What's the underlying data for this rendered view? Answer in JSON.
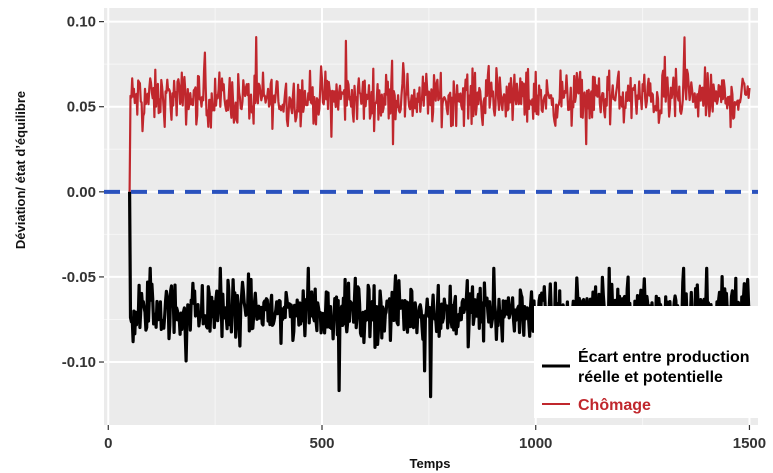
{
  "chart_data": {
    "type": "line",
    "xlabel": "Temps",
    "ylabel": "Déviation/ état d’équilibre",
    "xlim": [
      -10,
      1520
    ],
    "ylim": [
      -0.137,
      0.108
    ],
    "x_ticks": [
      0,
      500,
      1000,
      1500
    ],
    "x_tick_labels": [
      "0",
      "500",
      "1000",
      "1500"
    ],
    "y_ticks": [
      -0.1,
      -0.05,
      0.0,
      0.05,
      0.1
    ],
    "y_tick_labels": [
      "-0.10",
      "-0.05",
      "0.00",
      "0.05",
      "0.10"
    ],
    "grid": true,
    "legend_position": "bottom-right",
    "x_start": 50,
    "x_end": 1500,
    "series": [
      {
        "name": "Chômage",
        "color": "#c0272d",
        "mean": 0.055,
        "noise_range": [
          0.028,
          0.099
        ],
        "start_value": 0.0
      },
      {
        "name": "Écart entre production réelle et potentielle",
        "color": "#000000",
        "mean": -0.07,
        "noise_range": [
          -0.137,
          -0.045
        ],
        "start_value": 0.0
      },
      {
        "name": "",
        "color": "#2a52be",
        "style": "dashed",
        "constant": 0.0
      }
    ],
    "legend": [
      {
        "line1": "Écart entre production",
        "line2": "réelle et potentielle",
        "color": "#000000"
      },
      {
        "line1": "Chômage",
        "line2": "",
        "color": "#c0272d"
      }
    ]
  }
}
